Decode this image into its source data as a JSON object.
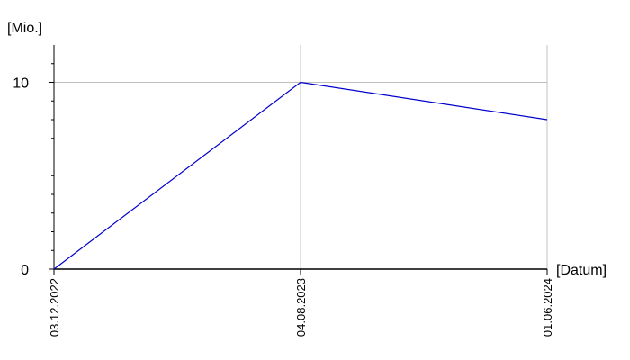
{
  "chart_data": {
    "type": "line",
    "y_label": "[Mio.]",
    "x_label": "[Datum]",
    "categories": [
      "03.12.2022",
      "04.08.2023",
      "01.06.2024"
    ],
    "series": [
      {
        "name": null,
        "color": "#0000cc",
        "values": [
          0,
          10,
          8
        ]
      }
    ],
    "ylim": [
      0,
      12
    ],
    "yticks": [
      0,
      10
    ],
    "minor_yticks": [
      1,
      2,
      3,
      4,
      5,
      6,
      7,
      8,
      9,
      11
    ],
    "grid": true
  }
}
